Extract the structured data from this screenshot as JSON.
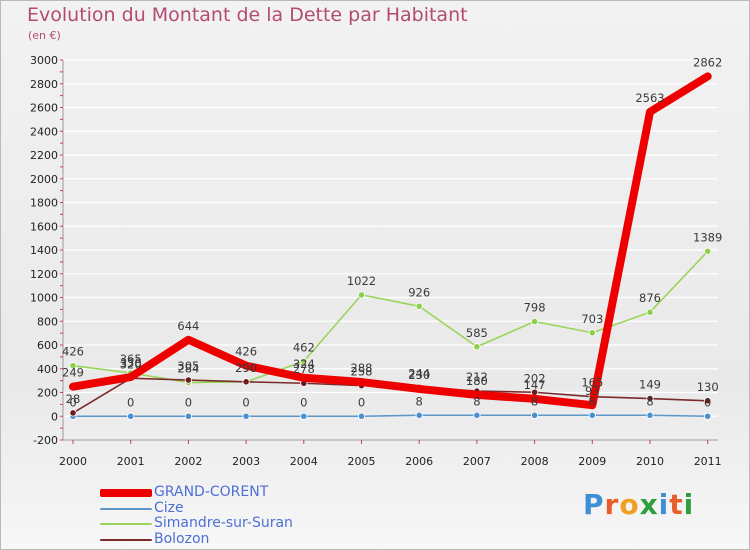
{
  "title": "Evolution du Montant de la Dette par Habitant",
  "subtitle": "(en €)",
  "logo": {
    "text": "Proxiti",
    "letter_colors": [
      "#3f8fd6",
      "#e85d2a",
      "#f0a020",
      "#2e9e3e",
      "#3f8fd6",
      "#e85d2a",
      "#2e9e3e"
    ]
  },
  "chart_data": {
    "type": "line",
    "categories": [
      "2000",
      "2001",
      "2002",
      "2003",
      "2004",
      "2005",
      "2006",
      "2007",
      "2008",
      "2009",
      "2010",
      "2011"
    ],
    "ylim": [
      -200,
      3000
    ],
    "yticks": [
      -200,
      0,
      200,
      400,
      600,
      800,
      1000,
      1200,
      1400,
      1600,
      1800,
      2000,
      2200,
      2400,
      2600,
      2800,
      3000
    ],
    "grid": "horizontal",
    "legend_placement": "bottom-left",
    "series": [
      {
        "name": "GRAND-CORENT",
        "color": "#ee0000",
        "values": [
          249,
          330,
          644,
          426,
          324,
          288,
          230,
          180,
          147,
          93,
          2563,
          2862
        ],
        "labels": [
          "249",
          "330",
          "644",
          "426",
          "324",
          "288",
          "230",
          "180",
          "147",
          "93",
          "2563",
          "2862"
        ]
      },
      {
        "name": "Cize",
        "color": "#5f96c8",
        "values": [
          0,
          0,
          0,
          0,
          0,
          0,
          8,
          8,
          8,
          8,
          8,
          0
        ],
        "labels": [
          "0",
          "0",
          "0",
          "0",
          "0",
          "0",
          "8",
          "8",
          "8",
          "8",
          "8",
          "0"
        ]
      },
      {
        "name": "Simandre-sur-Suran",
        "color": "#9bd45a",
        "values": [
          426,
          365,
          284,
          290,
          462,
          1022,
          926,
          585,
          798,
          703,
          876,
          1389
        ],
        "labels": [
          "426",
          "365",
          "284",
          "290",
          "462",
          "1022",
          "926",
          "585",
          "798",
          "703",
          "876",
          "1389"
        ]
      },
      {
        "name": "Bolozon",
        "color": "#7a2a2a",
        "values": [
          28,
          320,
          305,
          290,
          278,
          258,
          244,
          212,
          202,
          165,
          149,
          130
        ],
        "labels": [
          "28",
          "320",
          "305",
          "290",
          "278",
          "258",
          "244",
          "212",
          "202",
          "165",
          "149",
          "130"
        ]
      }
    ]
  }
}
